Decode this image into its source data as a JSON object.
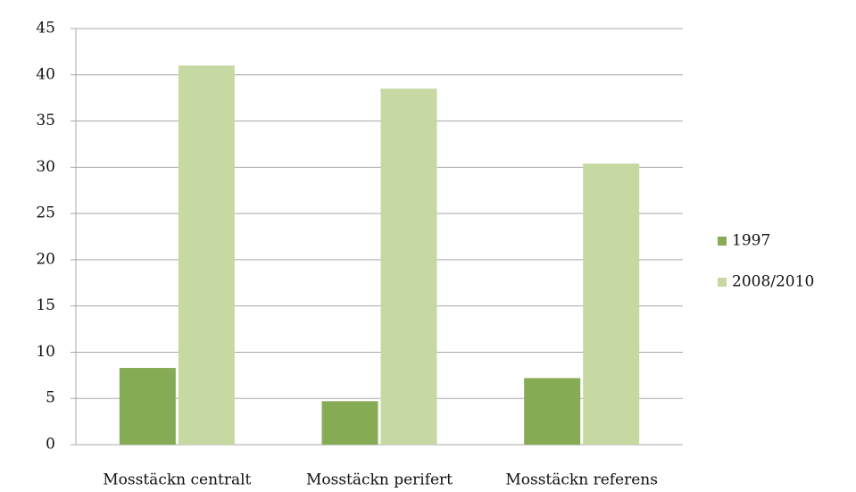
{
  "chart_data": {
    "type": "bar",
    "categories": [
      "Mosstäckn centralt",
      "Mosstäckn perifert",
      "Mosstäckn referens"
    ],
    "series": [
      {
        "name": "1997",
        "color": "#86ab55",
        "values": [
          8.3,
          4.7,
          7.2
        ]
      },
      {
        "name": "2008/2010",
        "color": "#c6d9a2",
        "values": [
          41,
          38.5,
          30.4
        ]
      }
    ],
    "ylim": [
      0,
      45
    ],
    "yticks": [
      0,
      5,
      10,
      15,
      20,
      25,
      30,
      35,
      40,
      45
    ],
    "grid": true,
    "legend": "right"
  }
}
